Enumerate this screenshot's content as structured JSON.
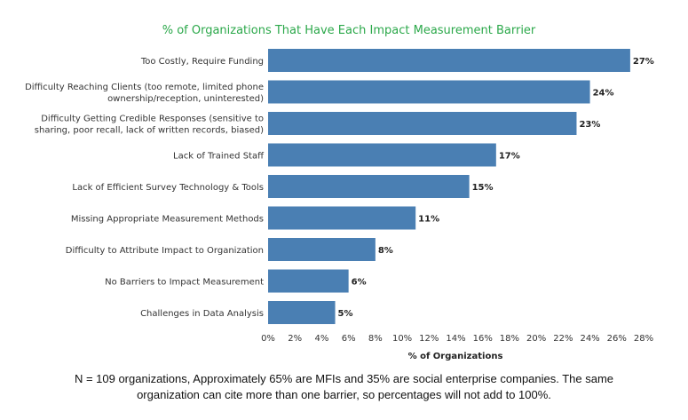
{
  "chart_data": {
    "type": "bar",
    "orientation": "horizontal",
    "title": "% of Organizations That Have Each Impact Measurement Barrier",
    "xlabel": "% of Organizations",
    "ylabel": "",
    "xlim": [
      0,
      28
    ],
    "ticks": [
      "0%",
      "2%",
      "4%",
      "6%",
      "8%",
      "10%",
      "12%",
      "14%",
      "16%",
      "18%",
      "20%",
      "22%",
      "24%",
      "26%",
      "28%"
    ],
    "grid": false,
    "categories": [
      [
        "Too Costly, Require Funding"
      ],
      [
        "Difficulty Reaching Clients (too remote, limited phone",
        "ownership/reception, uninterested)"
      ],
      [
        "Difficulty Getting Credible Responses (sensitive to",
        "sharing, poor recall, lack of written records, biased)"
      ],
      [
        "Lack of Trained Staff"
      ],
      [
        "Lack of Efficient Survey Technology & Tools"
      ],
      [
        "Missing Appropriate Measurement Methods"
      ],
      [
        "Difficulty to Attribute Impact to Organization"
      ],
      [
        "No Barriers to Impact Measurement"
      ],
      [
        "Challenges in Data Analysis"
      ]
    ],
    "values": [
      27,
      24,
      23,
      17,
      15,
      11,
      8,
      6,
      5
    ],
    "value_labels": [
      "27%",
      "24%",
      "23%",
      "17%",
      "15%",
      "11%",
      "8%",
      "6%",
      "5%"
    ],
    "colors": {
      "bar": "#4a7fb3",
      "title": "#2ba84a"
    }
  },
  "footnote": {
    "line1": "N = 109 organizations, Approximately 65% are MFIs and 35% are social enterprise companies. The same",
    "line2": "organization can cite more than one barrier, so percentages will not add to 100%."
  }
}
